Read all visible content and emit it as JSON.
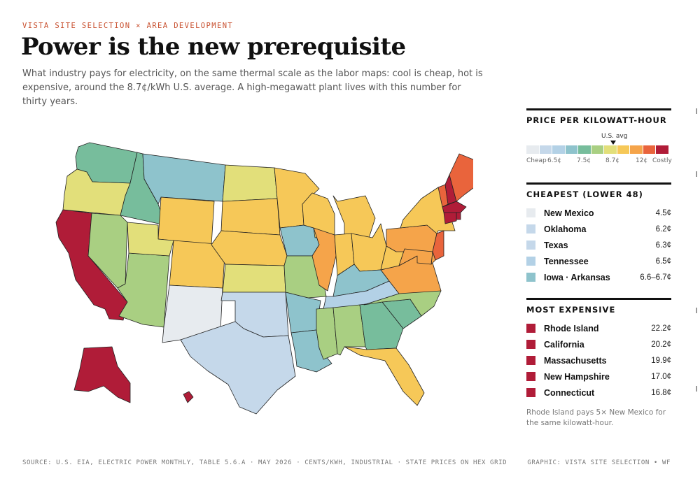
{
  "header": {
    "kicker": "VISTA SITE SELECTION × AREA DEVELOPMENT",
    "title": "Power is the new prerequisite",
    "subtitle": "What industry pays for electricity, on the same thermal scale as the labor maps: cool is cheap, hot is expensive, around the 8.7¢/kWh U.S. average. A high-megawatt plant lives with this number for thirty years."
  },
  "legend": {
    "title": "PRICE PER KILOWATT-HOUR",
    "avg_label": "U.S. avg",
    "colors": [
      "#e7ebef",
      "#c5d8ea",
      "#b3d1e6",
      "#8ec3cc",
      "#77bd9c",
      "#a9cf82",
      "#e2df7a",
      "#f6c858",
      "#f5a44a",
      "#e9643c",
      "#b01c38"
    ],
    "ticks": [
      "Cheap",
      "6.5¢",
      "7.5¢",
      "8.7¢",
      "12¢",
      "Costly"
    ]
  },
  "cheapest": {
    "title": "CHEAPEST (LOWER 48)",
    "items": [
      {
        "name": "New Mexico",
        "value": "4.5¢",
        "color": "#e7ebef"
      },
      {
        "name": "Oklahoma",
        "value": "6.2¢",
        "color": "#c5d8ea"
      },
      {
        "name": "Texas",
        "value": "6.3¢",
        "color": "#c5d8ea"
      },
      {
        "name": "Tennessee",
        "value": "6.5¢",
        "color": "#b3d1e6"
      },
      {
        "name": "Iowa · Arkansas",
        "value": "6.6–6.7¢",
        "color": "#8ec3cc"
      }
    ]
  },
  "expensive": {
    "title": "MOST EXPENSIVE",
    "items": [
      {
        "name": "Rhode Island",
        "value": "22.2¢",
        "color": "#b01c38"
      },
      {
        "name": "California",
        "value": "20.2¢",
        "color": "#b01c38"
      },
      {
        "name": "Massachusetts",
        "value": "19.9¢",
        "color": "#b01c38"
      },
      {
        "name": "New Hampshire",
        "value": "17.0¢",
        "color": "#b01c38"
      },
      {
        "name": "Connecticut",
        "value": "16.8¢",
        "color": "#b01c38"
      }
    ]
  },
  "note": "Rhode Island pays 5× New Mexico for the same kilowatt-hour.",
  "footer": {
    "source": "SOURCE: U.S. EIA, ELECTRIC POWER MONTHLY, TABLE 5.6.A · MAY 2026 · CENTS/KWH, INDUSTRIAL · STATE PRICES ON HEX GRID",
    "credit": "GRAPHIC: VISTA SITE SELECTION • WF"
  },
  "map": {
    "states": [
      {
        "id": "WA",
        "color": "#77bd9c"
      },
      {
        "id": "OR",
        "color": "#e2df7a"
      },
      {
        "id": "CA",
        "color": "#b01c38"
      },
      {
        "id": "ID",
        "color": "#77bd9c"
      },
      {
        "id": "NV",
        "color": "#a9cf82"
      },
      {
        "id": "AZ",
        "color": "#a9cf82"
      },
      {
        "id": "MT",
        "color": "#8ec3cc"
      },
      {
        "id": "WY",
        "color": "#f6c858"
      },
      {
        "id": "UT",
        "color": "#e2df7a"
      },
      {
        "id": "CO",
        "color": "#f6c858"
      },
      {
        "id": "NM",
        "color": "#e7ebef"
      },
      {
        "id": "ND",
        "color": "#e2df7a"
      },
      {
        "id": "SD",
        "color": "#f6c858"
      },
      {
        "id": "NE",
        "color": "#f6c858"
      },
      {
        "id": "KS",
        "color": "#e2df7a"
      },
      {
        "id": "OK",
        "color": "#c5d8ea"
      },
      {
        "id": "TX",
        "color": "#c5d8ea"
      },
      {
        "id": "MN",
        "color": "#f6c858"
      },
      {
        "id": "IA",
        "color": "#8ec3cc"
      },
      {
        "id": "MO",
        "color": "#a9cf82"
      },
      {
        "id": "AR",
        "color": "#8ec3cc"
      },
      {
        "id": "LA",
        "color": "#8ec3cc"
      },
      {
        "id": "WI",
        "color": "#f6c858"
      },
      {
        "id": "IL",
        "color": "#f5a44a"
      },
      {
        "id": "MI",
        "color": "#f6c858"
      },
      {
        "id": "IN",
        "color": "#f6c858"
      },
      {
        "id": "OH",
        "color": "#f6c858"
      },
      {
        "id": "KY",
        "color": "#8ec3cc"
      },
      {
        "id": "TN",
        "color": "#b3d1e6"
      },
      {
        "id": "MS",
        "color": "#a9cf82"
      },
      {
        "id": "AL",
        "color": "#a9cf82"
      },
      {
        "id": "GA",
        "color": "#77bd9c"
      },
      {
        "id": "FL",
        "color": "#f6c858"
      },
      {
        "id": "SC",
        "color": "#77bd9c"
      },
      {
        "id": "NC",
        "color": "#a9cf82"
      },
      {
        "id": "VA",
        "color": "#f5a44a"
      },
      {
        "id": "WV",
        "color": "#f6c858"
      },
      {
        "id": "PA",
        "color": "#f5a44a"
      },
      {
        "id": "NY",
        "color": "#f6c858"
      },
      {
        "id": "VT",
        "color": "#e9643c"
      },
      {
        "id": "NH",
        "color": "#b01c38"
      },
      {
        "id": "ME",
        "color": "#e9643c"
      },
      {
        "id": "MA",
        "color": "#b01c38"
      },
      {
        "id": "RI",
        "color": "#b01c38"
      },
      {
        "id": "CT",
        "color": "#b01c38"
      },
      {
        "id": "NJ",
        "color": "#e9643c"
      },
      {
        "id": "DE",
        "color": "#f5a44a"
      },
      {
        "id": "MD",
        "color": "#f5a44a"
      },
      {
        "id": "AK",
        "color": "#b01c38"
      },
      {
        "id": "HI",
        "color": "#b01c38"
      }
    ]
  }
}
